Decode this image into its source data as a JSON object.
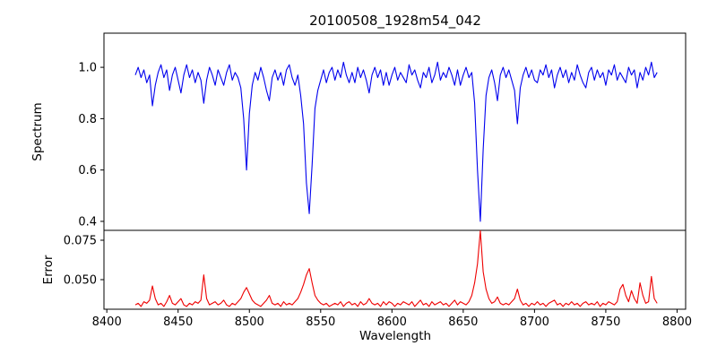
{
  "figure": {
    "title": "20100508_1928m54_042",
    "xlabel": "Wavelength",
    "ylabel_top": "Spectrum",
    "ylabel_bottom": "Error"
  },
  "chart_data": {
    "type": "line",
    "title": "20100508_1928m54_042",
    "xlabel": "Wavelength",
    "x_start": 8420,
    "x_step": 2,
    "xlim": [
      8398,
      8806
    ],
    "xtick_values": [
      8400,
      8450,
      8500,
      8550,
      8600,
      8650,
      8700,
      8750,
      8800
    ],
    "xtick_labels": [
      "8400",
      "8450",
      "8500",
      "8550",
      "8600",
      "8650",
      "8700",
      "8750",
      "8800"
    ],
    "legend": "none",
    "grid": false,
    "subplots": [
      {
        "name": "spectrum",
        "ylabel": "Spectrum",
        "color": "#0000ee",
        "ylim": [
          0.365,
          1.133
        ],
        "ytick_values": [
          0.4,
          0.6,
          0.8,
          1.0
        ],
        "ytick_labels": [
          "0.4",
          "0.6",
          "0.8",
          "1.0"
        ],
        "values": [
          0.97,
          1.0,
          0.96,
          0.99,
          0.94,
          0.97,
          0.85,
          0.93,
          0.98,
          1.01,
          0.96,
          0.99,
          0.91,
          0.97,
          1.0,
          0.95,
          0.9,
          0.97,
          1.01,
          0.96,
          0.99,
          0.94,
          0.98,
          0.95,
          0.86,
          0.95,
          1.0,
          0.97,
          0.93,
          0.99,
          0.96,
          0.93,
          0.98,
          1.01,
          0.95,
          0.98,
          0.96,
          0.92,
          0.8,
          0.6,
          0.82,
          0.93,
          0.98,
          0.95,
          1.0,
          0.96,
          0.91,
          0.87,
          0.96,
          0.99,
          0.95,
          0.98,
          0.93,
          0.99,
          1.01,
          0.96,
          0.93,
          0.97,
          0.89,
          0.78,
          0.55,
          0.43,
          0.62,
          0.84,
          0.91,
          0.95,
          0.99,
          0.94,
          0.98,
          1.0,
          0.95,
          0.99,
          0.96,
          1.02,
          0.97,
          0.94,
          0.98,
          0.94,
          1.0,
          0.96,
          0.99,
          0.95,
          0.9,
          0.97,
          1.0,
          0.96,
          0.99,
          0.93,
          0.98,
          0.93,
          0.97,
          1.0,
          0.95,
          0.98,
          0.96,
          0.94,
          1.01,
          0.97,
          0.99,
          0.95,
          0.92,
          0.98,
          0.96,
          1.0,
          0.94,
          0.97,
          1.02,
          0.95,
          0.98,
          0.96,
          1.0,
          0.97,
          0.93,
          0.99,
          0.93,
          0.97,
          1.0,
          0.96,
          0.98,
          0.86,
          0.6,
          0.4,
          0.68,
          0.89,
          0.96,
          0.99,
          0.94,
          0.87,
          0.97,
          1.0,
          0.96,
          0.99,
          0.95,
          0.91,
          0.78,
          0.92,
          0.97,
          1.0,
          0.96,
          0.99,
          0.95,
          0.94,
          0.99,
          0.97,
          1.01,
          0.96,
          0.99,
          0.92,
          0.97,
          1.0,
          0.96,
          0.99,
          0.94,
          0.98,
          0.95,
          1.01,
          0.97,
          0.94,
          0.92,
          0.98,
          1.0,
          0.95,
          0.99,
          0.96,
          0.98,
          0.93,
          0.99,
          0.97,
          1.01,
          0.95,
          0.98,
          0.96,
          0.94,
          1.0,
          0.97,
          0.99,
          0.92,
          0.98,
          0.95,
          1.0,
          0.97,
          1.02,
          0.96,
          0.98
        ]
      },
      {
        "name": "error",
        "ylabel": "Error",
        "color": "#ee0000",
        "ylim": [
          0.03125,
          0.08125
        ],
        "ytick_values": [
          0.05,
          0.075
        ],
        "ytick_labels": [
          "0.050",
          "0.075"
        ],
        "values": [
          0.034,
          0.035,
          0.033,
          0.036,
          0.035,
          0.037,
          0.046,
          0.038,
          0.034,
          0.035,
          0.033,
          0.036,
          0.04,
          0.035,
          0.034,
          0.036,
          0.038,
          0.034,
          0.033,
          0.035,
          0.034,
          0.036,
          0.035,
          0.037,
          0.053,
          0.038,
          0.034,
          0.035,
          0.036,
          0.034,
          0.035,
          0.037,
          0.034,
          0.033,
          0.035,
          0.034,
          0.036,
          0.038,
          0.042,
          0.045,
          0.041,
          0.037,
          0.035,
          0.034,
          0.033,
          0.035,
          0.037,
          0.04,
          0.035,
          0.034,
          0.035,
          0.033,
          0.036,
          0.034,
          0.035,
          0.034,
          0.036,
          0.038,
          0.042,
          0.047,
          0.053,
          0.057,
          0.048,
          0.04,
          0.037,
          0.035,
          0.034,
          0.035,
          0.033,
          0.034,
          0.035,
          0.034,
          0.036,
          0.033,
          0.035,
          0.036,
          0.034,
          0.035,
          0.033,
          0.036,
          0.034,
          0.035,
          0.038,
          0.035,
          0.034,
          0.035,
          0.033,
          0.036,
          0.034,
          0.036,
          0.035,
          0.033,
          0.035,
          0.034,
          0.036,
          0.035,
          0.034,
          0.036,
          0.033,
          0.035,
          0.037,
          0.034,
          0.035,
          0.033,
          0.036,
          0.034,
          0.035,
          0.036,
          0.034,
          0.035,
          0.033,
          0.035,
          0.037,
          0.034,
          0.036,
          0.035,
          0.034,
          0.036,
          0.04,
          0.048,
          0.06,
          0.081,
          0.055,
          0.044,
          0.038,
          0.035,
          0.036,
          0.039,
          0.035,
          0.034,
          0.035,
          0.034,
          0.036,
          0.038,
          0.044,
          0.037,
          0.034,
          0.035,
          0.033,
          0.035,
          0.034,
          0.036,
          0.034,
          0.035,
          0.033,
          0.035,
          0.036,
          0.037,
          0.034,
          0.035,
          0.033,
          0.035,
          0.034,
          0.036,
          0.034,
          0.035,
          0.033,
          0.035,
          0.036,
          0.034,
          0.035,
          0.034,
          0.036,
          0.033,
          0.035,
          0.034,
          0.036,
          0.035,
          0.034,
          0.036,
          0.044,
          0.047,
          0.04,
          0.036,
          0.043,
          0.038,
          0.035,
          0.048,
          0.04,
          0.035,
          0.036,
          0.052,
          0.038,
          0.035
        ]
      }
    ]
  }
}
